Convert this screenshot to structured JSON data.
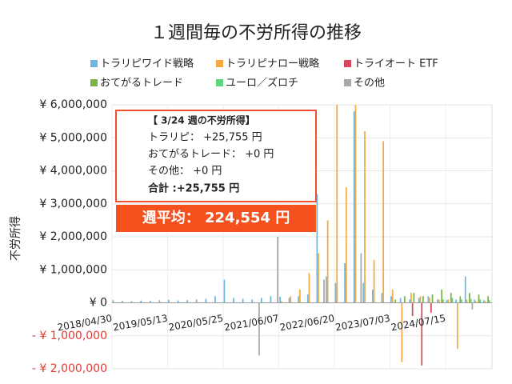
{
  "chart_data": {
    "type": "bar",
    "title": "１週間毎の不労所得の推移",
    "y_label": "不労所得",
    "categories": [
      "2018/04/30",
      null,
      null,
      null,
      null,
      null,
      "2019/05/13",
      null,
      null,
      null,
      null,
      null,
      "2020/05/25",
      null,
      null,
      null,
      null,
      null,
      "2021/06/07",
      null,
      null,
      null,
      null,
      null,
      "2022/06/20",
      null,
      null,
      null,
      null,
      null,
      "2023/07/03",
      null,
      null,
      null,
      null,
      null,
      "2024/07/15",
      null,
      null,
      null,
      null
    ],
    "series": [
      {
        "name": "トラリピワイド戦略",
        "color": "#6fb7e0",
        "values": [
          80000,
          60000,
          50000,
          70000,
          60000,
          80000,
          90000,
          70000,
          80000,
          100000,
          120000,
          200000,
          700000,
          150000,
          120000,
          100000,
          150000,
          200000,
          180000,
          150000,
          200000,
          250000,
          3300000,
          800000,
          600000,
          1200000,
          5800000,
          600000,
          400000,
          300000,
          200000,
          150000,
          100000,
          150000,
          200000,
          100000,
          80000,
          100000,
          800000,
          100000,
          80000
        ]
      },
      {
        "name": "トラリピナロー戦略",
        "color": "#f5a940",
        "values": [
          0,
          0,
          0,
          0,
          0,
          0,
          0,
          0,
          0,
          0,
          0,
          0,
          0,
          0,
          0,
          0,
          0,
          0,
          50000,
          200000,
          400000,
          900000,
          1500000,
          2500000,
          6000000,
          3500000,
          6000000,
          5200000,
          1300000,
          4900000,
          400000,
          -1800000,
          300000,
          200000,
          150000,
          100000,
          100000,
          -1400000,
          100000,
          50000,
          50000
        ]
      },
      {
        "name": "トライオート ETF",
        "color": "#d9475a",
        "values": [
          0,
          0,
          0,
          0,
          0,
          0,
          0,
          0,
          0,
          0,
          0,
          0,
          0,
          0,
          0,
          0,
          0,
          0,
          0,
          0,
          0,
          0,
          0,
          0,
          0,
          0,
          0,
          0,
          0,
          0,
          0,
          0,
          -400000,
          -1900000,
          -300000,
          0,
          0,
          0,
          0,
          0,
          0
        ]
      },
      {
        "name": "おてがるトレード",
        "color": "#7cb342",
        "values": [
          0,
          0,
          0,
          0,
          0,
          0,
          0,
          0,
          0,
          0,
          0,
          0,
          0,
          0,
          0,
          0,
          0,
          0,
          0,
          0,
          0,
          0,
          0,
          0,
          0,
          0,
          0,
          0,
          0,
          0,
          100000,
          200000,
          300000,
          200000,
          250000,
          400000,
          300000,
          200000,
          300000,
          250000,
          200000
        ]
      },
      {
        "name": "ユーロ／ズロチ",
        "color": "#5cd67a",
        "values": [
          0,
          0,
          0,
          0,
          0,
          0,
          0,
          0,
          0,
          0,
          0,
          0,
          0,
          0,
          0,
          0,
          0,
          0,
          0,
          0,
          0,
          0,
          0,
          0,
          0,
          0,
          0,
          0,
          0,
          0,
          0,
          0,
          0,
          0,
          0,
          100000,
          150000,
          100000,
          120000,
          100000,
          80000
        ]
      },
      {
        "name": "その他",
        "color": "#a8a8a8",
        "values": [
          0,
          0,
          0,
          0,
          0,
          0,
          0,
          0,
          0,
          0,
          0,
          0,
          0,
          0,
          0,
          -1600000,
          0,
          2000000,
          0,
          0,
          0,
          0,
          700000,
          0,
          0,
          0,
          1500000,
          0,
          0,
          0,
          0,
          0,
          0,
          0,
          0,
          0,
          0,
          0,
          -200000,
          0,
          0
        ]
      }
    ],
    "ylim": [
      -2000000,
      6000000
    ],
    "yticks": [
      {
        "value": -2000000,
        "label": "- ¥ 2,000,000"
      },
      {
        "value": -1000000,
        "label": "- ¥ 1,000,000"
      },
      {
        "value": 0,
        "label": "¥ 0"
      },
      {
        "value": 1000000,
        "label": "¥ 1,000,000"
      },
      {
        "value": 2000000,
        "label": "¥ 2,000,000"
      },
      {
        "value": 3000000,
        "label": "¥ 3,000,000"
      },
      {
        "value": 4000000,
        "label": "¥ 4,000,000"
      },
      {
        "value": 5000000,
        "label": "¥ 5,000,000"
      },
      {
        "value": 6000000,
        "label": "¥ 6,000,000"
      }
    ],
    "negative_tick_color": "#e53935",
    "grid": true,
    "tooltip": {
      "title": "【 3/24 週の不労所得】",
      "lines": [
        "トラリピ： +25,755 円",
        "おてがるトレード： +0 円",
        "その他： +0 円"
      ],
      "total": "合計 :+25,755 円"
    },
    "average_label": "週平均： 224,554 円"
  }
}
